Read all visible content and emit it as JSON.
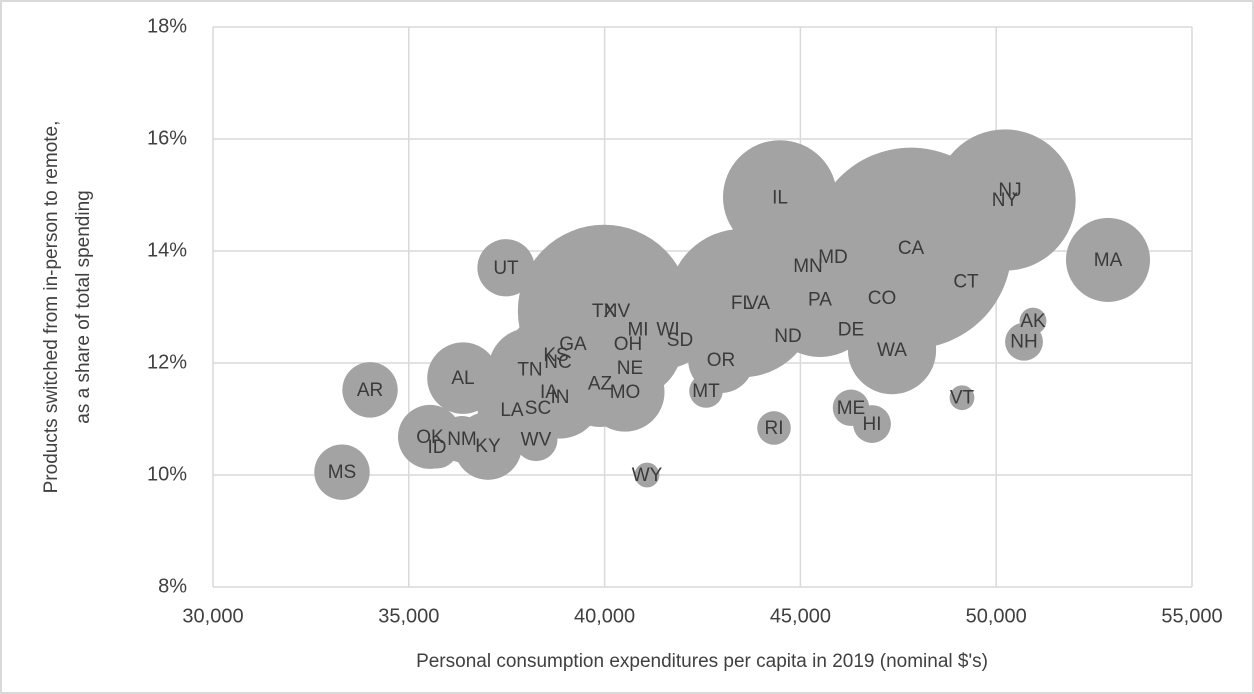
{
  "chart_data": {
    "type": "scatter",
    "xlabel": "Personal consumption expenditures per capita in 2019 (nominal $'s)",
    "ylabel": [
      "Products switched from in-person to remote,",
      "as a share of total spending"
    ],
    "xlim": [
      30000,
      55000
    ],
    "xticks": [
      {
        "value": 30000,
        "label": "30,000"
      },
      {
        "value": 35000,
        "label": "35,000"
      },
      {
        "value": 40000,
        "label": "40,000"
      },
      {
        "value": 45000,
        "label": "45,000"
      },
      {
        "value": 50000,
        "label": "50,000"
      },
      {
        "value": 55000,
        "label": "55,000"
      }
    ],
    "ylim": [
      8,
      18
    ],
    "yticks": [
      {
        "value": 8,
        "label": "8%"
      },
      {
        "value": 10,
        "label": "10%"
      },
      {
        "value": 12,
        "label": "12%"
      },
      {
        "value": 14,
        "label": "14%"
      },
      {
        "value": 16,
        "label": "16%"
      },
      {
        "value": 18,
        "label": "18%"
      }
    ],
    "grid": true,
    "series": [
      {
        "color": "#a3a3a3",
        "labels": [
          "CA",
          "TX",
          "FL",
          "NY",
          "PA",
          "IL",
          "OH",
          "GA",
          "NC",
          "MI",
          "NJ",
          "VA",
          "WA",
          "AZ",
          "MA",
          "TN",
          "IN",
          "MO",
          "MD",
          "WI",
          "CO",
          "MN",
          "SC",
          "AL",
          "LA",
          "KY",
          "OR",
          "OK",
          "CT",
          "UT",
          "IA",
          "NV",
          "AR",
          "MS",
          "KS",
          "NM",
          "NE",
          "ID",
          "WV",
          "HI",
          "NH",
          "ME",
          "MT",
          "RI",
          "DE",
          "SD",
          "ND",
          "AK",
          "VT",
          "WY"
        ],
        "x": [
          47825,
          39985,
          43509,
          50225,
          45500,
          44479,
          40598,
          39193,
          38810,
          40853,
          50352,
          43917,
          47339,
          39883,
          52855,
          38095,
          38860,
          40521,
          45833,
          41619,
          47084,
          45194,
          38299,
          36384,
          37635,
          37022,
          42972,
          35541,
          49229,
          37482,
          38580,
          40317,
          34010,
          33294,
          38759,
          36358,
          40649,
          35720,
          38248,
          46828,
          50710,
          46292,
          42590,
          44326,
          46292,
          41925,
          44683,
          50940,
          49127,
          41083
        ],
        "values": [
          14.05,
          12.93,
          13.07,
          14.91,
          13.13,
          14.96,
          12.34,
          12.34,
          12.02,
          12.6,
          15.09,
          13.07,
          12.23,
          11.63,
          13.84,
          11.88,
          11.39,
          11.48,
          13.89,
          12.6,
          13.16,
          13.73,
          11.2,
          11.73,
          11.16,
          10.52,
          12.05,
          10.68,
          13.46,
          13.7,
          11.48,
          12.93,
          11.52,
          10.05,
          12.14,
          10.64,
          11.91,
          10.5,
          10.63,
          10.91,
          12.38,
          11.2,
          11.5,
          10.84,
          12.6,
          12.41,
          12.48,
          12.75,
          11.38,
          10.0
        ],
        "sizes": [
          39.5,
          29,
          21.5,
          19.5,
          12.8,
          12.7,
          11.7,
          10.6,
          10.5,
          10,
          8.9,
          8.5,
          7.6,
          7.3,
          6.9,
          6.8,
          6.7,
          6.1,
          6.1,
          5.8,
          5.8,
          5.7,
          5.1,
          5,
          4.6,
          4.5,
          4.2,
          4,
          3.6,
          3.2,
          3.2,
          3.1,
          3,
          3,
          2.9,
          2.1,
          1.9,
          1.8,
          1.8,
          1.4,
          1.4,
          1.3,
          1.1,
          1.1,
          1,
          0.9,
          0.8,
          0.7,
          0.6,
          0.6
        ]
      }
    ]
  }
}
